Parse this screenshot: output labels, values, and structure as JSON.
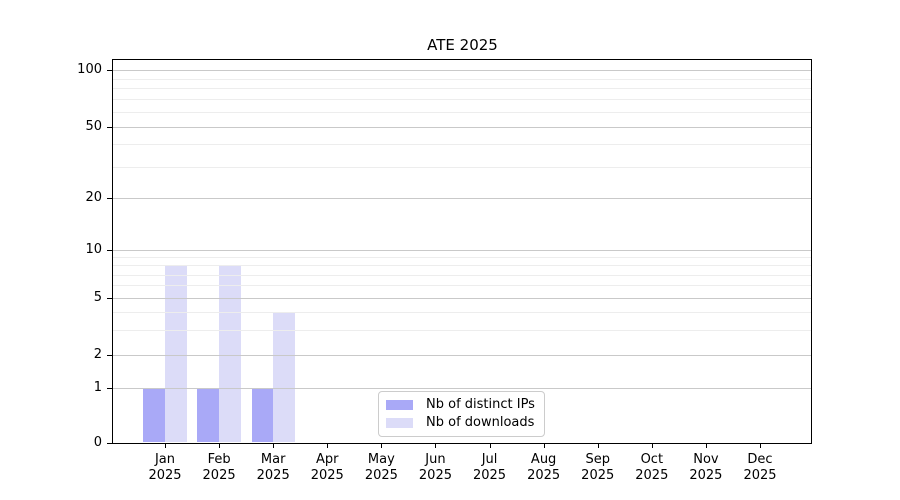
{
  "title": "ATE 2025",
  "chart_data": {
    "type": "bar",
    "title": "ATE 2025",
    "x_tick_months": [
      "Jan",
      "Feb",
      "Mar",
      "Apr",
      "May",
      "Jun",
      "Jul",
      "Aug",
      "Sep",
      "Oct",
      "Nov",
      "Dec"
    ],
    "x_tick_year": "2025",
    "series": [
      {
        "name": "Nb of distinct IPs",
        "color": "#a9a9f7",
        "values": [
          1,
          1,
          1,
          0,
          0,
          0,
          0,
          0,
          0,
          0,
          0,
          0
        ]
      },
      {
        "name": "Nb of downloads",
        "color": "#dcdcf8",
        "values": [
          8,
          8,
          4,
          0,
          0,
          0,
          0,
          0,
          0,
          0,
          0,
          0
        ]
      }
    ],
    "y_scale": "symlog",
    "y_ticks": [
      0,
      1,
      2,
      5,
      10,
      20,
      50,
      100
    ],
    "ylim": [
      0,
      140
    ],
    "grid": true,
    "legend_position": "inside-bottom-center"
  },
  "colors": {
    "background": "#ffffff",
    "spine": "#000000",
    "grid_major": "#c9c9c9",
    "grid_minor": "#ededed",
    "text": "#000000",
    "legend_border": "#cccccc"
  }
}
